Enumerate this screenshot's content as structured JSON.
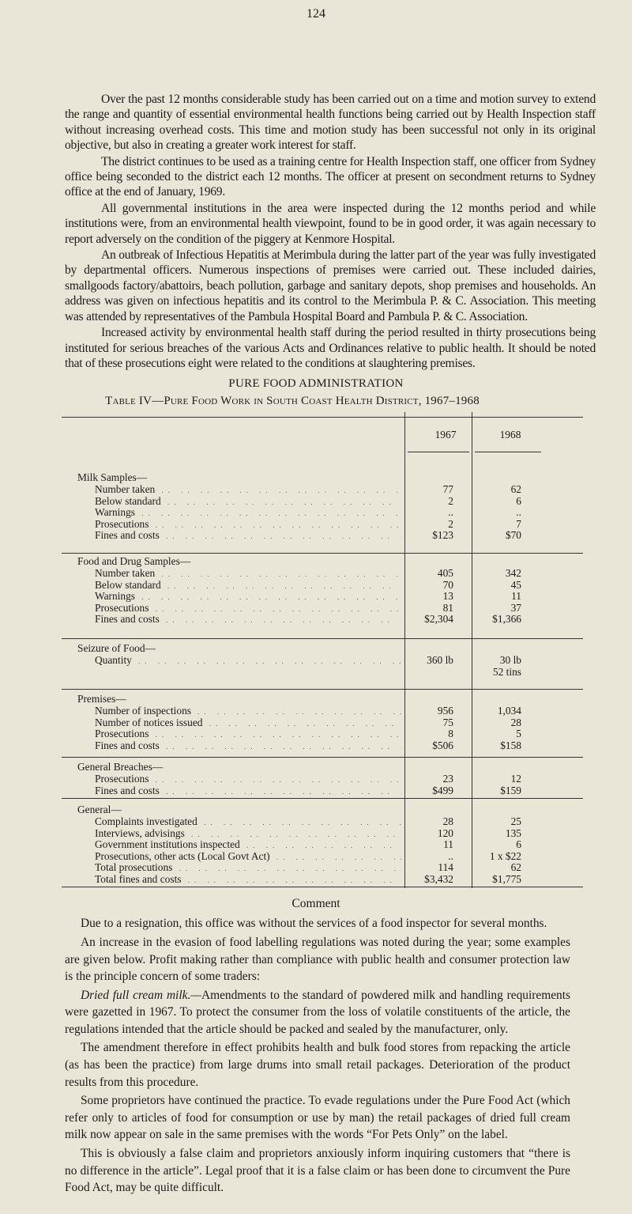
{
  "page_number": "124",
  "top_paragraphs": [
    "Over the past 12 months considerable study has been carried out on a time and motion survey to extend the range and quantity of essential environmental health functions being carried out by Health Inspection staff without increasing overhead costs. This time and motion study has been successful not only in its original objective, but also in creating a greater work interest for staff.",
    "The district continues to be used as a training centre for Health Inspection staff, one officer from Sydney office being seconded to the district each 12 months. The officer at present on secondment returns to Sydney office at the end of January, 1969.",
    "All governmental institutions in the area were inspected during the 12 months period and while institutions were, from an environmental health viewpoint, found to be in good order, it was again necessary to report adversely on the condition of the piggery at Kenmore Hospital.",
    "An outbreak of Infectious Hepatitis at Merimbula during the latter part of the year was fully investigated by departmental officers. Numerous inspections of premises were carried out. These included dairies, smallgoods factory/abattoirs, beach pollution, garbage and sanitary depots, shop premises and households. An address was given on infectious hepatitis and its control to the Merimbula P. & C. Association. This meeting was attended by representatives of the Pambula Hospital Board and Pambula P. & C. Association.",
    "Increased activity by environmental health staff during the period resulted in thirty prosecutions being instituted for serious breaches of the various Acts and Ordinances relative to public health. It should be noted that of these prosecutions eight were related to the conditions at slaughtering premises."
  ],
  "section_heading": "PURE FOOD ADMINISTRATION",
  "table": {
    "caption": "Table IV—Pure Food Work in South Coast Health District, 1967–1968",
    "columns": [
      "1967",
      "1968"
    ],
    "sections": [
      {
        "title": "Milk Samples—",
        "rows": [
          {
            "label": "Number taken",
            "v1967": "77",
            "v1968": "62"
          },
          {
            "label": "Below standard",
            "v1967": "2",
            "v1968": "6"
          },
          {
            "label": "Warnings",
            "v1967": "..",
            "v1968": ".."
          },
          {
            "label": "Prosecutions",
            "v1967": "2",
            "v1968": "7"
          },
          {
            "label": "Fines and costs",
            "v1967": "$123",
            "v1968": "$70"
          }
        ]
      },
      {
        "title": "Food and Drug Samples—",
        "rows": [
          {
            "label": "Number taken",
            "v1967": "405",
            "v1968": "342"
          },
          {
            "label": "Below standard",
            "v1967": "70",
            "v1968": "45"
          },
          {
            "label": "Warnings",
            "v1967": "13",
            "v1968": "11"
          },
          {
            "label": "Prosecutions",
            "v1967": "81",
            "v1968": "37"
          },
          {
            "label": "Fines and costs",
            "v1967": "$2,304",
            "v1968": "$1,366"
          }
        ]
      },
      {
        "title": "Seizure of Food—",
        "rows": [
          {
            "label": "Quantity",
            "v1967": "360 lb",
            "v1968": "30 lb"
          },
          {
            "label": "",
            "v1967": "",
            "v1968": "52 tins"
          }
        ]
      },
      {
        "title": "Premises—",
        "rows": [
          {
            "label": "Number of inspections",
            "v1967": "956",
            "v1968": "1,034"
          },
          {
            "label": "Number of notices issued",
            "v1967": "75",
            "v1968": "28"
          },
          {
            "label": "Prosecutions",
            "v1967": "8",
            "v1968": "5"
          },
          {
            "label": "Fines and costs",
            "v1967": "$506",
            "v1968": "$158"
          }
        ]
      },
      {
        "title": "General Breaches—",
        "rows": [
          {
            "label": "Prosecutions",
            "v1967": "23",
            "v1968": "12"
          },
          {
            "label": "Fines and costs",
            "v1967": "$499",
            "v1968": "$159"
          }
        ]
      },
      {
        "title": "General—",
        "rows": [
          {
            "label": "Complaints investigated",
            "v1967": "28",
            "v1968": "25"
          },
          {
            "label": "Interviews, advisings",
            "v1967": "120",
            "v1968": "135"
          },
          {
            "label": "Government institutions inspected",
            "v1967": "11",
            "v1968": "6"
          },
          {
            "label": "Prosecutions, other acts (Local Govt Act)",
            "v1967": "..",
            "v1968": "1 x $22"
          },
          {
            "label": "Total prosecutions",
            "v1967": "114",
            "v1968": "62"
          },
          {
            "label": "Total fines and costs",
            "v1967": "$3,432",
            "v1968": "$1,775"
          }
        ]
      }
    ]
  },
  "comment_heading": "Comment",
  "bottom_paragraphs": [
    {
      "lead": "",
      "text": "Due to a resignation, this office was without the services of a food inspector for several months."
    },
    {
      "lead": "",
      "text": "An increase in the evasion of food labelling regulations was noted during the year; some examples are given below. Profit making rather than compliance with public health and consumer protection law is the principle concern of some traders:"
    },
    {
      "lead": "Dried full cream milk.—",
      "text": "Amendments to the standard of powdered milk and handling requirements were gazetted in 1967. To protect the consumer from the loss of volatile constituents of the article, the regulations intended that the article should be packed and sealed by the manufacturer, only."
    },
    {
      "lead": "",
      "text": "The amendment therefore in effect prohibits health and bulk food stores from repacking the article (as has been the practice) from large drums into small retail packages. Deterioration of the product results from this procedure."
    },
    {
      "lead": "",
      "text": "Some proprietors have continued the practice. To evade regulations under the Pure Food Act (which refer only to articles of food for consumption or use by man) the retail packages of dried full cream milk now appear on sale in the same premises with the words “For Pets Only” on the label."
    },
    {
      "lead": "",
      "text": "This is obviously a false claim and proprietors anxiously inform inquiring customers that “there is no difference in the article”. Legal proof that it is a false claim or has been done to circumvent the Pure Food Act, may be quite difficult."
    }
  ]
}
